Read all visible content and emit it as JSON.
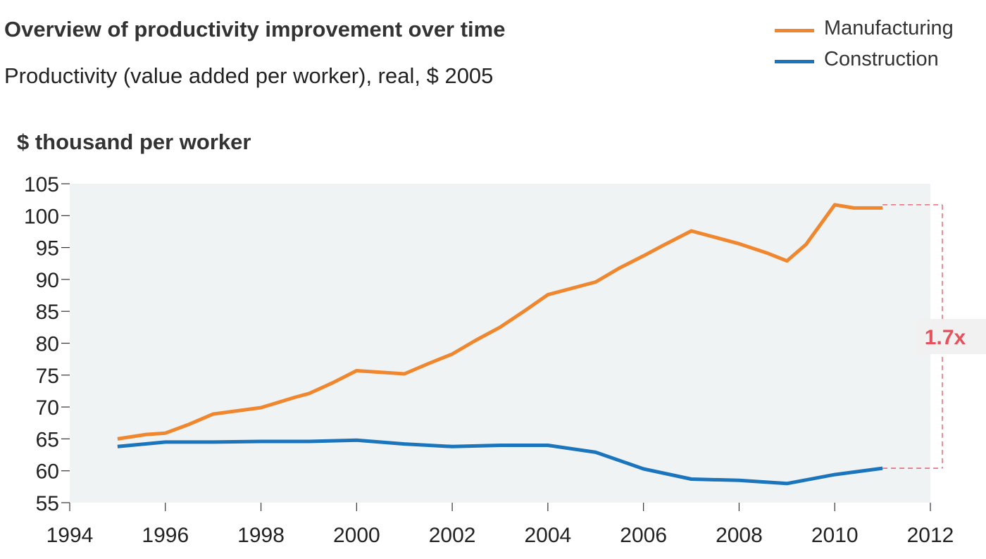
{
  "chart_data": {
    "type": "line",
    "title": "Overview of productivity improvement over time",
    "subtitle": "Productivity (value added per worker), real, $ 2005",
    "ylabel": "$ thousand per worker",
    "xlabel": "",
    "xlim": [
      1994,
      2012
    ],
    "ylim": [
      55,
      105
    ],
    "x_ticks": [
      "1994",
      "1996",
      "1998",
      "2000",
      "2002",
      "2004",
      "2006",
      "2008",
      "2010",
      "2012"
    ],
    "y_ticks": [
      "55",
      "60",
      "65",
      "70",
      "75",
      "80",
      "85",
      "90",
      "95",
      "100",
      "105"
    ],
    "legend_placement": "top-right",
    "grid": false,
    "series": [
      {
        "name": "Manufacturing",
        "color": "#F0862D",
        "points": [
          [
            1995,
            65.0
          ],
          [
            1995.6,
            65.7
          ],
          [
            1996,
            65.9
          ],
          [
            1996.5,
            67.3
          ],
          [
            1997,
            68.9
          ],
          [
            1998,
            69.9
          ],
          [
            1998.7,
            71.5
          ],
          [
            1999,
            72.1
          ],
          [
            1999.5,
            73.8
          ],
          [
            2000,
            75.7
          ],
          [
            2001,
            75.2
          ],
          [
            2001.5,
            76.8
          ],
          [
            2002,
            78.3
          ],
          [
            2002.5,
            80.5
          ],
          [
            2003,
            82.5
          ],
          [
            2003.5,
            85.0
          ],
          [
            2004,
            87.6
          ],
          [
            2005,
            89.6
          ],
          [
            2005.5,
            91.8
          ],
          [
            2006,
            93.7
          ],
          [
            2006.4,
            95.3
          ],
          [
            2007,
            97.6
          ],
          [
            2008,
            95.6
          ],
          [
            2008.6,
            94.1
          ],
          [
            2009,
            92.9
          ],
          [
            2009.4,
            95.5
          ],
          [
            2010,
            101.7
          ],
          [
            2010.4,
            101.2
          ],
          [
            2011,
            101.2
          ]
        ]
      },
      {
        "name": "Construction",
        "color": "#1B75BC",
        "points": [
          [
            1995,
            63.8
          ],
          [
            1996,
            64.5
          ],
          [
            1997,
            64.5
          ],
          [
            1998,
            64.6
          ],
          [
            1999,
            64.6
          ],
          [
            2000,
            64.8
          ],
          [
            2001,
            64.2
          ],
          [
            2002,
            63.8
          ],
          [
            2003,
            64.0
          ],
          [
            2004,
            64.0
          ],
          [
            2005,
            62.9
          ],
          [
            2006,
            60.3
          ],
          [
            2007,
            58.7
          ],
          [
            2008,
            58.5
          ],
          [
            2009,
            58.0
          ],
          [
            2010,
            59.4
          ],
          [
            2011,
            60.4
          ]
        ]
      }
    ],
    "annotation": {
      "label": "1.7x",
      "color": "#E8505B",
      "from_value": 60.4,
      "to_value": 101.7
    }
  },
  "colors": {
    "plot_background": "#F0F3F4",
    "axis": "#333333"
  }
}
